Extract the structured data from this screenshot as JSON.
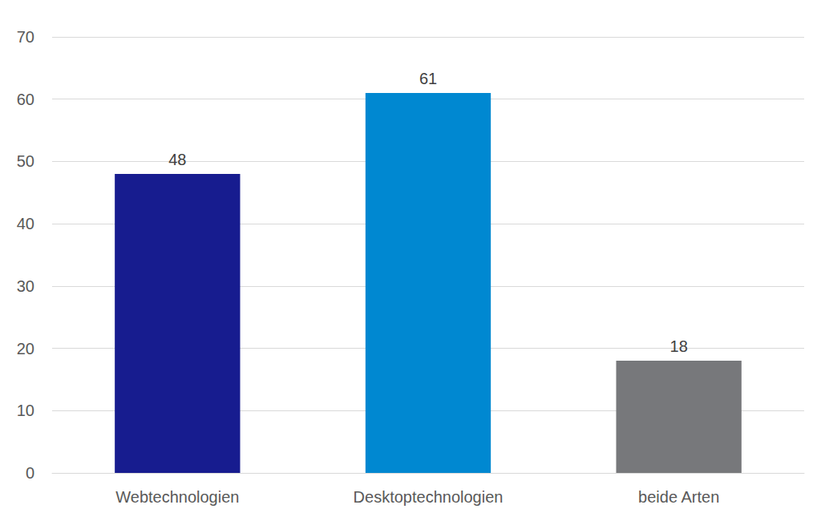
{
  "chart_data": {
    "type": "bar",
    "categories": [
      "Webtechnologien",
      "Desktoptechnologien",
      "beide Arten"
    ],
    "values": [
      48,
      61,
      18
    ],
    "colors": [
      "#171c8f",
      "#0088d1",
      "#77787b"
    ],
    "ylim": [
      0,
      70
    ],
    "yticks": [
      0,
      10,
      20,
      30,
      40,
      50,
      60,
      70
    ],
    "grid": true,
    "data_labels": true
  }
}
